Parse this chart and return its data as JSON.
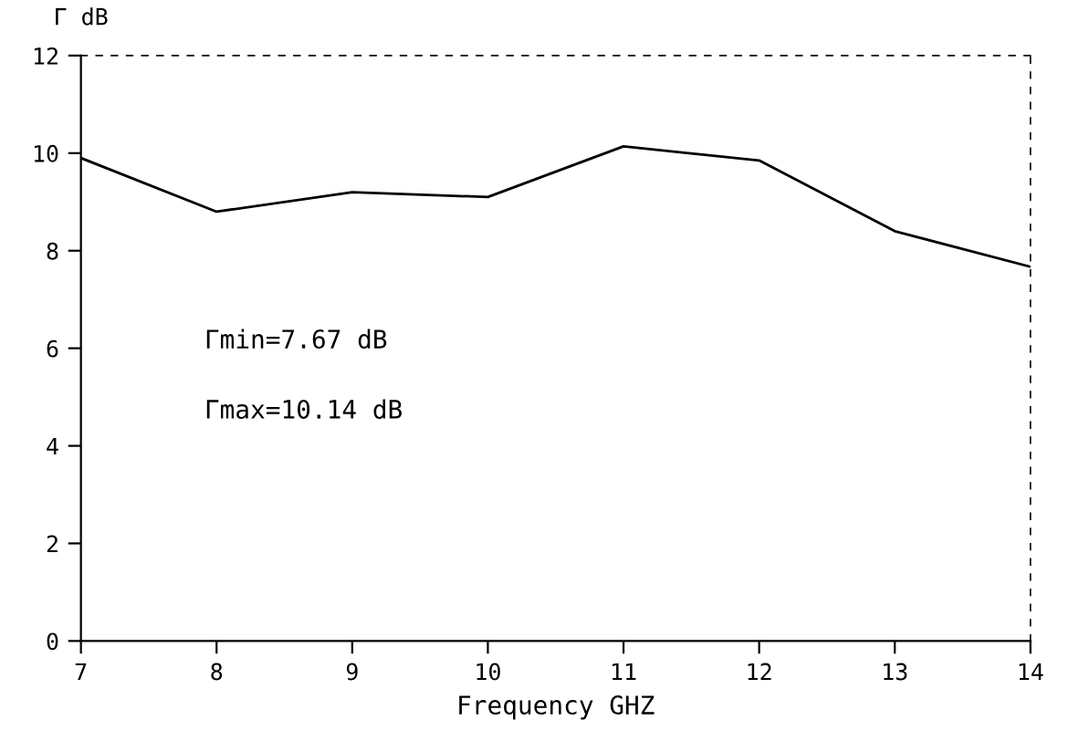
{
  "chart_data": {
    "type": "line",
    "ylabel": "Γ dB",
    "xlabel": "Frequency GHZ",
    "x": [
      7,
      8,
      9,
      10,
      11,
      12,
      13,
      14
    ],
    "series": [
      {
        "color": "#000000",
        "values": [
          9.9,
          8.8,
          9.2,
          9.1,
          10.14,
          9.85,
          8.4,
          7.67
        ]
      }
    ],
    "xlim": [
      7,
      14
    ],
    "xticks": [
      7,
      8,
      9,
      10,
      11,
      12,
      13,
      14
    ],
    "ylim": [
      0,
      12
    ],
    "yticks": [
      0,
      2,
      4,
      6,
      8,
      10,
      12
    ],
    "annotations": [
      "Γmin=7.67 dB",
      "Γmax=10.14 dB"
    ],
    "grid": false,
    "marker": "none",
    "line_style": "solid"
  }
}
